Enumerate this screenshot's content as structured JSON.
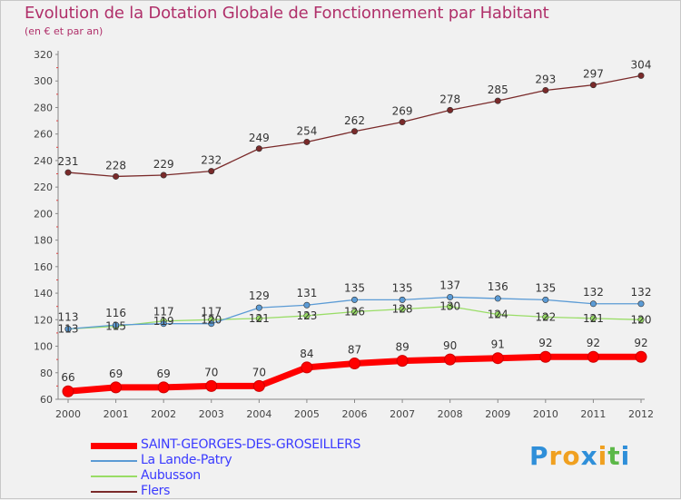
{
  "header": {
    "title": "Evolution de la Dotation Globale de Fonctionnement par Habitant",
    "subtitle": "(en € et par an)"
  },
  "logo": {
    "letters": [
      "P",
      "r",
      "o",
      "x",
      "i",
      "t",
      "i"
    ],
    "colors": [
      "#2f8fd9",
      "#f0a020",
      "#f0a020",
      "#2f8fd9",
      "#f0a020",
      "#5cb848",
      "#2f8fd9"
    ]
  },
  "chart_data": {
    "type": "line",
    "title": "Evolution de la Dotation Globale de Fonctionnement par Habitant",
    "subtitle": "(en € et par an)",
    "xlabel": "",
    "ylabel": "",
    "x": [
      "2000",
      "2001",
      "2002",
      "2003",
      "2004",
      "2005",
      "2006",
      "2007",
      "2008",
      "2009",
      "2010",
      "2011",
      "2012"
    ],
    "ylim": [
      60,
      320
    ],
    "yticks": [
      60,
      80,
      100,
      120,
      140,
      160,
      180,
      200,
      220,
      240,
      260,
      280,
      300,
      320
    ],
    "grid": false,
    "legend_position": "bottom-left",
    "series": [
      {
        "name": "SAINT-GEORGES-DES-GROSEILLERS",
        "color": "#ff0000",
        "values": [
          66,
          69,
          69,
          70,
          70,
          84,
          87,
          89,
          90,
          91,
          92,
          92,
          92
        ]
      },
      {
        "name": "La Lande-Patry",
        "color": "#5b9bd5",
        "values": [
          113,
          116,
          117,
          117,
          129,
          131,
          135,
          135,
          137,
          136,
          135,
          132,
          132
        ]
      },
      {
        "name": "Aubusson",
        "color": "#99dd66",
        "values": [
          113,
          115,
          119,
          120,
          121,
          123,
          126,
          128,
          130,
          124,
          122,
          121,
          120
        ]
      },
      {
        "name": "Flers",
        "color": "#7a2a2a",
        "values": [
          231,
          228,
          229,
          232,
          249,
          254,
          262,
          269,
          278,
          285,
          293,
          297,
          304
        ]
      }
    ]
  }
}
